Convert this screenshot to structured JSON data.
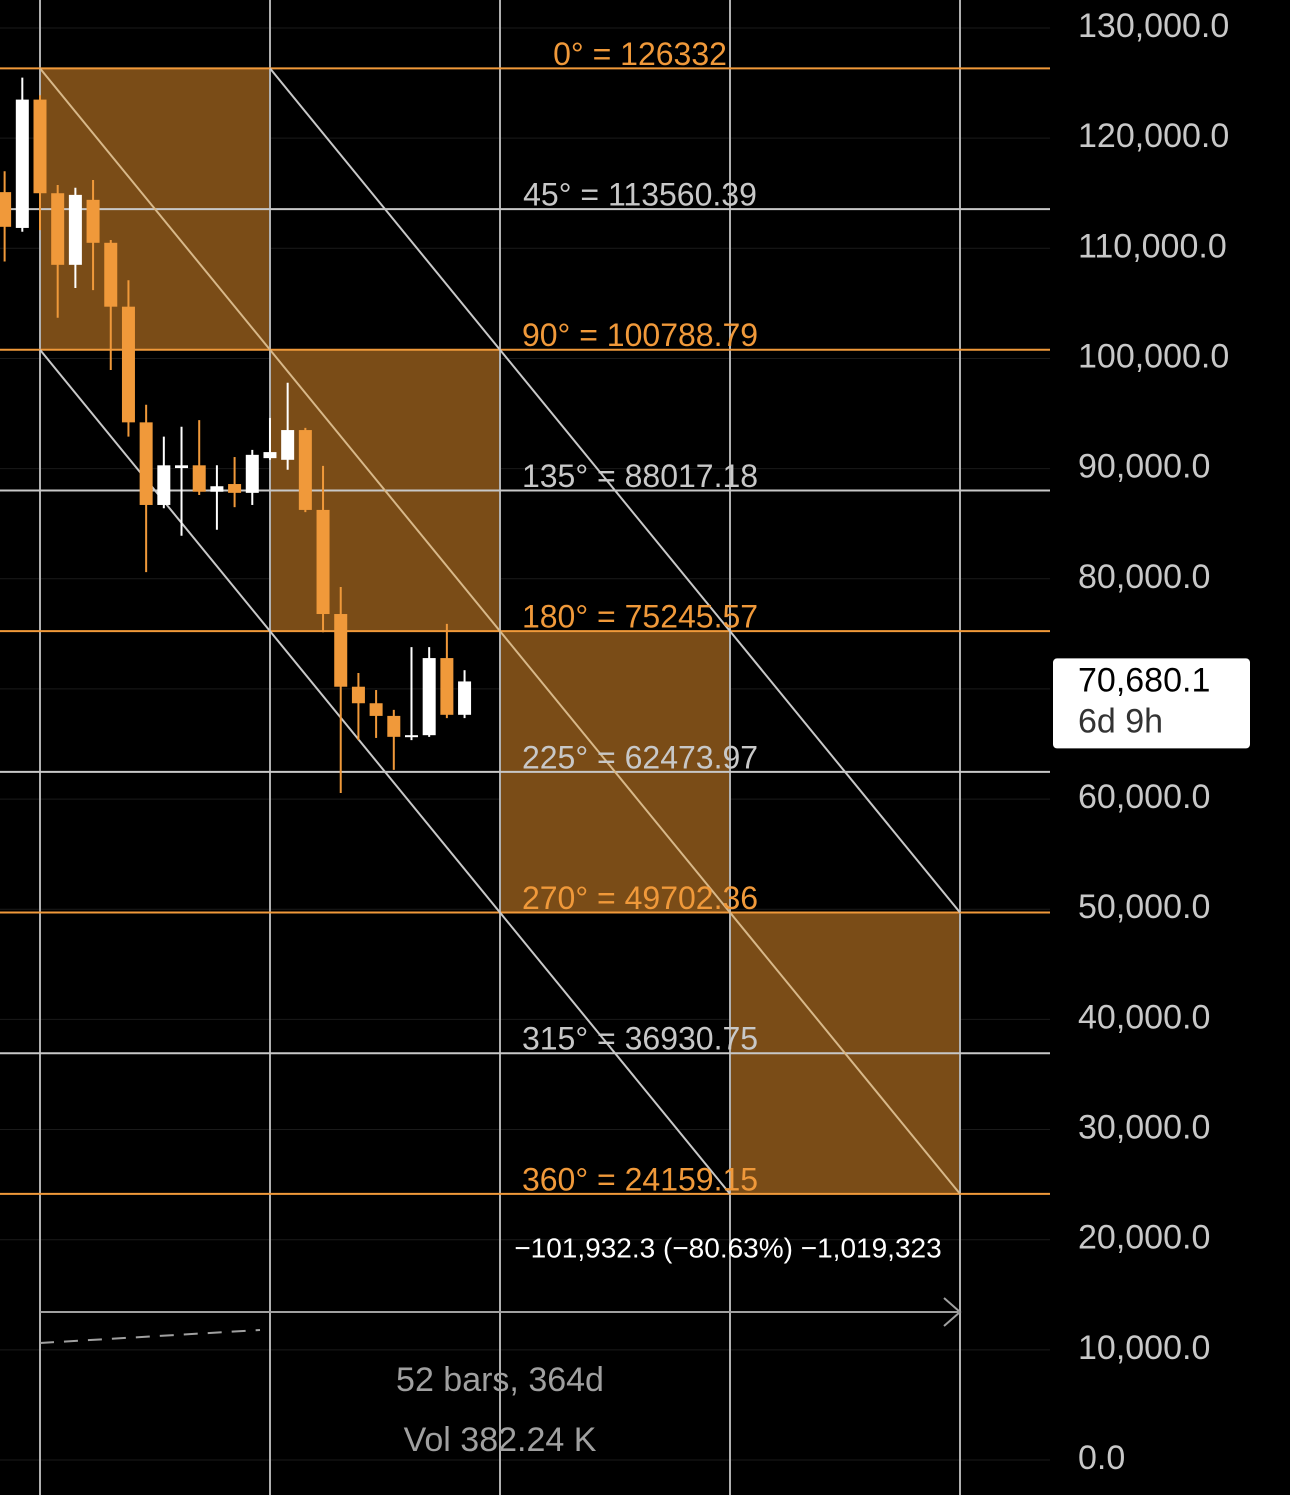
{
  "chart_data": {
    "type": "candlestick",
    "categories": [
      null,
      null,
      null,
      null,
      null,
      null,
      null,
      null,
      null,
      null,
      null,
      null,
      null,
      null,
      null,
      null,
      null,
      null,
      null,
      null,
      null,
      null,
      null,
      null,
      null,
      null,
      null
    ],
    "open": [
      115100,
      111850,
      123500,
      115000,
      108500,
      114400,
      110500,
      104700,
      94200,
      86700,
      90050,
      90300,
      87900,
      88600,
      87800,
      90950,
      90800,
      93500,
      86250,
      76800,
      70200,
      68700,
      67550,
      65650,
      65800,
      72800,
      67650
    ],
    "close": [
      111950,
      123500,
      115000,
      108500,
      114850,
      110500,
      104700,
      94200,
      86700,
      90300,
      90300,
      87900,
      88400,
      87800,
      91250,
      91500,
      93500,
      86250,
      76800,
      70200,
      68700,
      67550,
      65650,
      65800,
      72800,
      67650,
      70680
    ],
    "high": [
      117000,
      125500,
      123900,
      115750,
      115500,
      116200,
      110750,
      107100,
      95800,
      92900,
      93800,
      94400,
      90300,
      91050,
      91700,
      94600,
      97800,
      93700,
      90250,
      79250,
      71450,
      69900,
      68100,
      73800,
      73800,
      75900,
      71700
    ],
    "low": [
      108800,
      111500,
      111650,
      103700,
      106400,
      106200,
      98950,
      92900,
      80600,
      86400,
      83900,
      87600,
      84450,
      86500,
      86700,
      90800,
      89900,
      86050,
      75150,
      60550,
      65350,
      65550,
      62650,
      65350,
      65650,
      67350,
      67350
    ],
    "up_color": "#ffffff",
    "down_color": "#f0993a",
    "ylim": [
      0,
      130000
    ],
    "yticks": [
      {
        "value": 0,
        "label": "0.0"
      },
      {
        "value": 10000,
        "label": "10,000.0"
      },
      {
        "value": 20000,
        "label": "20,000.0"
      },
      {
        "value": 30000,
        "label": "30,000.0"
      },
      {
        "value": 40000,
        "label": "40,000.0"
      },
      {
        "value": 50000,
        "label": "50,000.0"
      },
      {
        "value": 60000,
        "label": "60,000.0"
      },
      {
        "value": 70000,
        "label": "70,000.0"
      },
      {
        "value": 80000,
        "label": "80,000.0"
      },
      {
        "value": 90000,
        "label": "90,000.0"
      },
      {
        "value": 100000,
        "label": "100,000.0"
      },
      {
        "value": 110000,
        "label": "110,000.0"
      },
      {
        "value": 120000,
        "label": "120,000.0"
      },
      {
        "value": 130000,
        "label": "130,000.0"
      }
    ],
    "gann_levels": [
      {
        "label": "0° = 126332",
        "value": 126332,
        "color": "#f0993a"
      },
      {
        "label": "45° = 113560.39",
        "value": 113560.39,
        "color": "#c8c8c8"
      },
      {
        "label": "90° = 100788.79",
        "value": 100788.79,
        "color": "#f0993a"
      },
      {
        "label": "135° = 88017.18",
        "value": 88017.18,
        "color": "#c8c8c8"
      },
      {
        "label": "180° = 75245.57",
        "value": 75245.57,
        "color": "#f0993a"
      },
      {
        "label": "225° = 62473.97",
        "value": 62473.97,
        "color": "#c8c8c8"
      },
      {
        "label": "270° = 49702.36",
        "value": 49702.36,
        "color": "#f0993a"
      },
      {
        "label": "315° = 36930.75",
        "value": 36930.75,
        "color": "#c8c8c8"
      },
      {
        "label": "360° = 24159.15",
        "value": 24159.15,
        "color": "#f0993a"
      }
    ],
    "last_price": 70680.1,
    "last_price_label": "70,680.1",
    "countdown": "6d 9h",
    "measure": "−101,932.3 (−80.63%) −1,019,323",
    "bars_info": "52 bars, 364d",
    "volume_info": "Vol 382.24 K"
  }
}
